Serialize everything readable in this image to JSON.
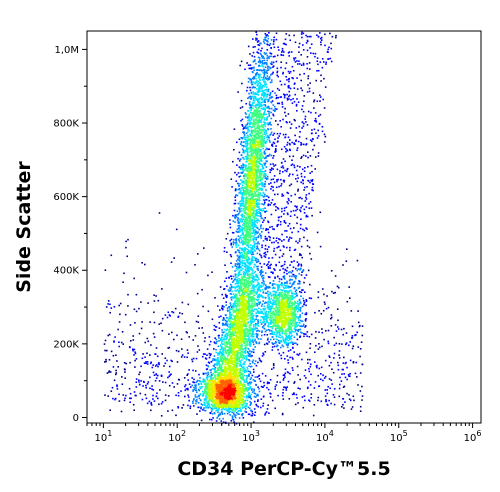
{
  "chart_data": {
    "type": "scatter",
    "subtype": "flow-cytometry density plot",
    "title": "",
    "xlabel": "CD34 PerCP-Cy™5.5",
    "ylabel": "Side Scatter",
    "x_scale": "log",
    "xlim": [
      6,
      1300000
    ],
    "ylim": [
      -15000,
      1050000
    ],
    "x_ticks": [
      {
        "value": 10,
        "base": "10",
        "exp": "1"
      },
      {
        "value": 100,
        "base": "10",
        "exp": "2"
      },
      {
        "value": 1000,
        "base": "10",
        "exp": "3"
      },
      {
        "value": 10000,
        "base": "10",
        "exp": "4"
      },
      {
        "value": 100000,
        "base": "10",
        "exp": "5"
      },
      {
        "value": 1000000,
        "base": "10",
        "exp": "6"
      }
    ],
    "y_ticks": [
      {
        "value": 0,
        "label": "0"
      },
      {
        "value": 200000,
        "label": "200K"
      },
      {
        "value": 400000,
        "label": "400K"
      },
      {
        "value": 600000,
        "label": "600K"
      },
      {
        "value": 800000,
        "label": "800K"
      },
      {
        "value": 1000000,
        "label": "1,0M"
      }
    ],
    "grid": false,
    "colormap": [
      "#00008b",
      "#0000ff",
      "#0080ff",
      "#00e0ff",
      "#40ff80",
      "#c0ff00",
      "#ffe000",
      "#ff6000",
      "#ff0000"
    ],
    "populations": [
      {
        "center_x": 450,
        "center_y": 70000,
        "spread_log_x": 0.18,
        "spread_y": 28000,
        "weight": 0.16
      },
      {
        "center_x": 1000,
        "center_y": 650000,
        "spread_log_x": 0.09,
        "spread_y": 200000,
        "weight": 0.3
      },
      {
        "center_x": 2800,
        "center_y": 290000,
        "spread_log_x": 0.12,
        "spread_y": 45000,
        "weight": 0.1
      }
    ]
  }
}
